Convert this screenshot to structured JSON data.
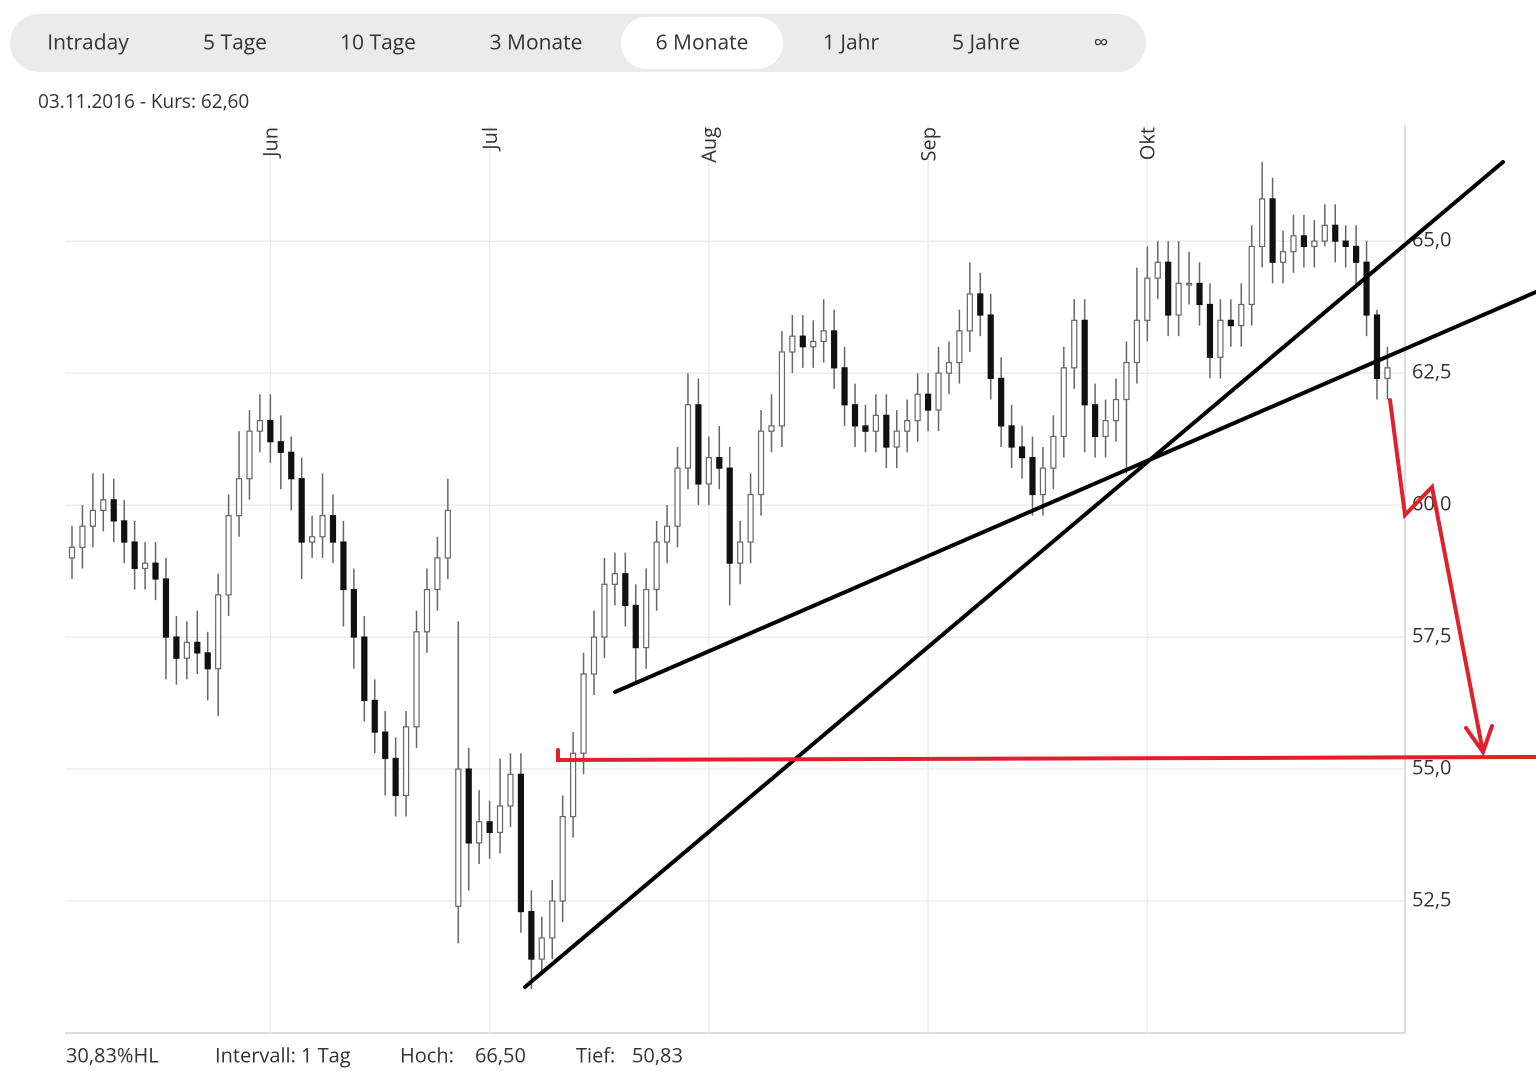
{
  "tabs": {
    "items": [
      "Intraday",
      "5 Tage",
      "10 Tage",
      "3 Monate",
      "6 Monate",
      "1 Jahr",
      "5 Jahre",
      "∞"
    ],
    "active": 4
  },
  "header": {
    "text": "03.11.2016  - Kurs: 62,60"
  },
  "footer": {
    "range": "30,83%HL",
    "interval": "Intervall: 1 Tag",
    "high_label": "Hoch:",
    "high_value": "66,50",
    "low_label": "Tief:",
    "low_value": "50,83"
  },
  "chart_data": {
    "type": "candlestick",
    "categories": [
      null,
      null,
      null,
      null,
      null,
      null,
      null,
      null,
      null,
      null,
      null,
      null,
      null,
      null,
      null,
      null,
      null,
      null,
      null,
      "Jun",
      null,
      null,
      null,
      null,
      null,
      null,
      null,
      null,
      null,
      null,
      null,
      null,
      null,
      null,
      null,
      null,
      null,
      null,
      null,
      null,
      "Jul",
      null,
      null,
      null,
      null,
      null,
      null,
      null,
      null,
      null,
      null,
      null,
      null,
      null,
      null,
      null,
      null,
      null,
      null,
      null,
      null,
      "Aug",
      null,
      null,
      null,
      null,
      null,
      null,
      null,
      null,
      null,
      null,
      null,
      null,
      null,
      null,
      null,
      null,
      null,
      null,
      null,
      null,
      "Sep",
      null,
      null,
      null,
      null,
      null,
      null,
      null,
      null,
      null,
      null,
      null,
      null,
      null,
      null,
      null,
      null,
      null,
      null,
      null,
      null,
      "Okt",
      null,
      null,
      null,
      null,
      null,
      null,
      null,
      null,
      null,
      null,
      null,
      null,
      null,
      null,
      null,
      null,
      null,
      null,
      null,
      null,
      null,
      null,
      null
    ],
    "open": [
      59.0,
      59.2,
      59.6,
      59.9,
      60.1,
      59.7,
      59.3,
      58.8,
      58.9,
      58.6,
      57.5,
      57.1,
      57.4,
      57.2,
      56.9,
      58.3,
      59.8,
      60.5,
      61.4,
      61.6,
      61.2,
      61.0,
      60.5,
      59.3,
      59.4,
      59.8,
      59.3,
      58.4,
      57.5,
      56.3,
      55.7,
      55.2,
      54.5,
      55.8,
      57.6,
      58.4,
      59.0,
      52.4,
      55.0,
      53.6,
      54.0,
      53.8,
      54.3,
      54.9,
      52.3,
      51.4,
      51.8,
      52.5,
      54.1,
      55.3,
      56.8,
      57.5,
      58.5,
      58.7,
      58.1,
      57.3,
      58.4,
      59.3,
      59.6,
      60.7,
      61.9,
      60.4,
      60.9,
      60.7,
      58.9,
      59.3,
      60.2,
      61.4,
      61.5,
      62.9,
      63.2,
      63.0,
      63.1,
      63.3,
      62.6,
      61.9,
      61.5,
      61.4,
      61.7,
      61.1,
      61.4,
      61.6,
      62.1,
      61.8,
      62.5,
      62.7,
      63.3,
      64.0,
      63.6,
      62.4,
      61.5,
      61.1,
      60.9,
      60.2,
      60.7,
      61.3,
      62.6,
      63.5,
      61.9,
      61.3,
      61.6,
      62.0,
      62.7,
      63.5,
      64.3,
      64.6,
      63.6,
      64.2,
      64.2,
      63.8,
      62.8,
      63.5,
      63.4,
      63.8,
      64.9,
      65.8,
      64.6,
      64.8,
      65.1,
      64.9,
      65.0,
      65.3,
      65.0,
      64.9,
      64.6,
      63.6,
      62.4
    ],
    "high": [
      59.6,
      60.0,
      60.6,
      60.6,
      60.5,
      60.1,
      59.7,
      59.3,
      59.3,
      59.0,
      57.9,
      57.8,
      58.0,
      57.6,
      58.7,
      60.2,
      61.4,
      61.8,
      62.1,
      62.1,
      61.7,
      61.3,
      60.9,
      59.8,
      60.6,
      60.2,
      59.7,
      58.8,
      57.9,
      56.7,
      56.1,
      55.6,
      56.1,
      58.0,
      58.8,
      59.4,
      60.5,
      57.8,
      55.4,
      54.6,
      54.4,
      55.2,
      55.3,
      55.3,
      52.7,
      52.2,
      52.9,
      54.5,
      55.7,
      57.2,
      58.0,
      59.0,
      59.1,
      59.1,
      58.5,
      58.8,
      59.7,
      60.0,
      61.1,
      62.5,
      62.4,
      61.3,
      61.5,
      61.1,
      59.7,
      60.6,
      61.8,
      62.1,
      63.3,
      63.6,
      63.6,
      63.5,
      63.9,
      63.7,
      63.0,
      62.3,
      61.9,
      62.1,
      62.1,
      61.8,
      62.0,
      62.5,
      62.5,
      63.0,
      63.1,
      63.7,
      64.6,
      64.4,
      64.0,
      62.8,
      61.9,
      61.5,
      61.3,
      61.1,
      61.7,
      63.0,
      63.9,
      63.9,
      62.3,
      62.0,
      62.4,
      63.1,
      64.5,
      64.9,
      65.0,
      65.0,
      65.0,
      64.8,
      64.6,
      64.2,
      63.9,
      63.9,
      64.2,
      65.3,
      66.5,
      66.2,
      65.2,
      65.5,
      65.5,
      65.4,
      65.7,
      65.7,
      65.3,
      65.3,
      65.0,
      63.7,
      63.0
    ],
    "low": [
      58.6,
      58.8,
      59.2,
      59.5,
      59.3,
      58.9,
      58.4,
      58.4,
      58.2,
      56.7,
      56.6,
      56.7,
      56.8,
      56.3,
      56.0,
      57.9,
      59.4,
      60.1,
      61.0,
      60.8,
      60.3,
      59.9,
      58.6,
      59.0,
      59.0,
      58.9,
      57.7,
      56.9,
      55.9,
      55.3,
      54.5,
      54.1,
      54.1,
      55.4,
      57.2,
      58.0,
      58.6,
      51.7,
      52.7,
      53.2,
      53.3,
      53.4,
      53.9,
      51.9,
      50.83,
      51.1,
      51.4,
      52.1,
      53.7,
      54.9,
      56.4,
      57.1,
      58.1,
      57.7,
      56.6,
      56.9,
      58.0,
      58.9,
      59.2,
      60.3,
      60.0,
      60.0,
      60.3,
      58.1,
      58.5,
      58.9,
      59.8,
      61.0,
      61.1,
      62.5,
      62.6,
      62.6,
      62.7,
      62.2,
      61.5,
      61.1,
      61.0,
      61.0,
      60.7,
      60.7,
      61.0,
      61.2,
      61.4,
      61.4,
      62.1,
      62.3,
      62.9,
      63.2,
      62.0,
      61.1,
      60.7,
      60.5,
      59.8,
      59.8,
      60.3,
      60.9,
      62.2,
      61.0,
      60.9,
      60.9,
      61.2,
      60.6,
      62.3,
      63.1,
      63.9,
      63.2,
      63.2,
      63.8,
      63.4,
      62.4,
      62.4,
      63.0,
      63.0,
      63.4,
      64.5,
      64.2,
      64.2,
      64.4,
      64.5,
      64.5,
      64.9,
      64.6,
      64.5,
      64.2,
      63.2,
      62.0,
      62.0
    ],
    "close": [
      59.2,
      59.6,
      59.9,
      60.1,
      59.7,
      59.3,
      58.8,
      58.9,
      58.6,
      57.5,
      57.1,
      57.4,
      57.2,
      56.9,
      58.3,
      59.8,
      60.5,
      61.4,
      61.6,
      61.2,
      61.0,
      60.5,
      59.3,
      59.4,
      59.8,
      59.3,
      58.4,
      57.5,
      56.3,
      55.7,
      55.2,
      54.5,
      55.8,
      57.6,
      58.4,
      59.0,
      59.9,
      55.0,
      53.6,
      54.0,
      53.8,
      54.3,
      54.9,
      52.3,
      51.4,
      51.8,
      52.5,
      54.1,
      55.3,
      56.8,
      57.5,
      58.5,
      58.7,
      58.1,
      57.3,
      58.4,
      59.3,
      59.6,
      60.7,
      61.9,
      60.4,
      60.9,
      60.7,
      58.9,
      59.3,
      60.2,
      61.4,
      61.5,
      62.9,
      63.2,
      63.0,
      63.1,
      63.3,
      62.6,
      61.9,
      61.5,
      61.4,
      61.7,
      61.1,
      61.4,
      61.6,
      62.1,
      61.8,
      62.5,
      62.7,
      63.3,
      64.0,
      63.6,
      62.4,
      61.5,
      61.1,
      60.9,
      60.2,
      60.7,
      61.3,
      62.6,
      63.5,
      61.9,
      61.3,
      61.6,
      62.0,
      62.7,
      63.5,
      64.3,
      64.6,
      63.6,
      64.2,
      64.2,
      63.8,
      62.8,
      63.5,
      63.4,
      63.8,
      64.9,
      65.8,
      64.6,
      64.8,
      65.1,
      64.9,
      65.0,
      65.3,
      65.0,
      64.9,
      64.6,
      63.6,
      62.4,
      62.6
    ],
    "up_color": "#ffffff",
    "down_color": "#111111",
    "wick_color": "#666666",
    "ylim": [
      50.0,
      67.2
    ],
    "yticks": [
      {
        "value": 52.5,
        "label": "52,5"
      },
      {
        "value": 55,
        "label": "55,0"
      },
      {
        "value": 57.5,
        "label": "57,5"
      },
      {
        "value": 60,
        "label": "60,0"
      },
      {
        "value": 62.5,
        "label": "62,5"
      },
      {
        "value": 65,
        "label": "65,0"
      }
    ],
    "grid": true
  }
}
